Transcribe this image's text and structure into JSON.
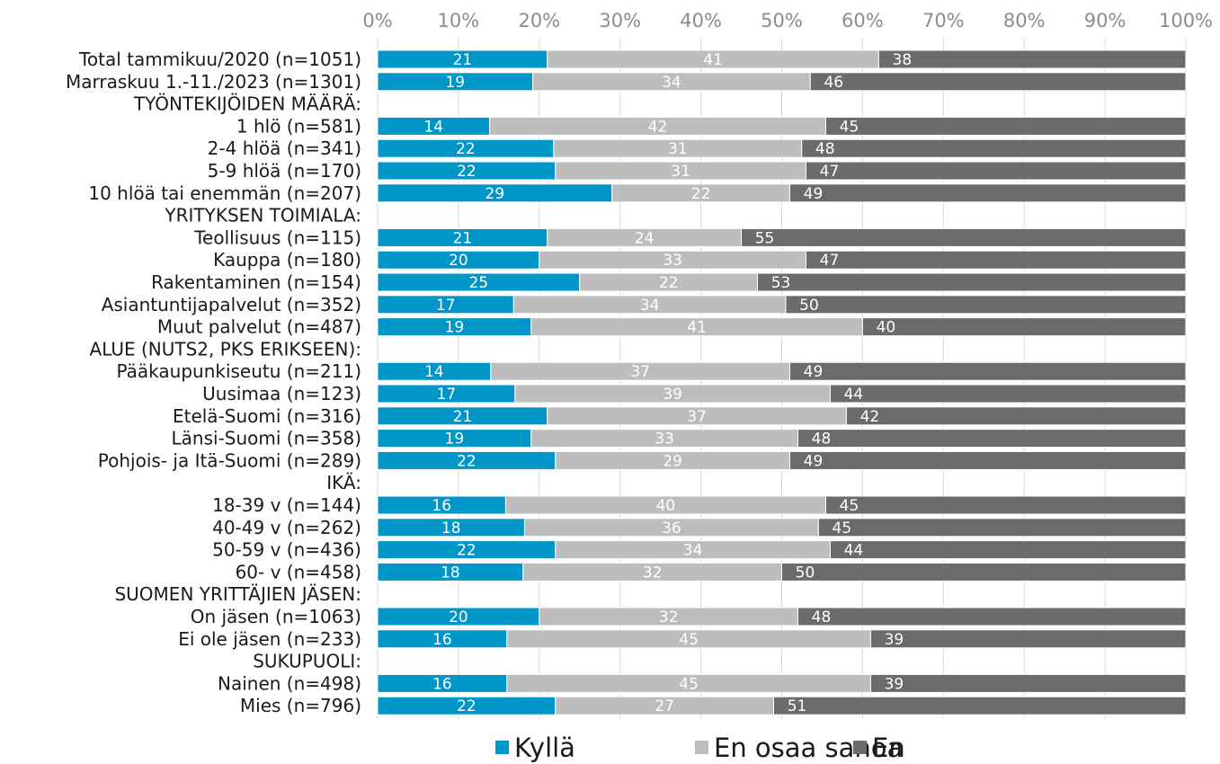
{
  "chart_data": {
    "type": "bar",
    "orientation": "horizontal",
    "stacked": true,
    "percent": true,
    "title": "",
    "xlabel": "",
    "ylabel": "",
    "xlim": [
      0,
      100
    ],
    "x_ticks": [
      "0%",
      "10%",
      "20%",
      "30%",
      "40%",
      "50%",
      "60%",
      "70%",
      "80%",
      "90%",
      "100%"
    ],
    "x_axis_position": "top",
    "grid": true,
    "legend_position": "bottom",
    "rows": [
      {
        "label": "Total tammikuu/2020 (n=1051)",
        "values": [
          21,
          41,
          38
        ]
      },
      {
        "label": "Marraskuu 1.-11./2023 (n=1301)",
        "values": [
          19,
          34,
          46
        ]
      },
      {
        "label": "TYÖNTEKIJÖIDEN MÄÄRÄ:",
        "header": true
      },
      {
        "label": "1 hlö (n=581)",
        "values": [
          14,
          42,
          45
        ]
      },
      {
        "label": "2-4 hlöä (n=341)",
        "values": [
          22,
          31,
          48
        ]
      },
      {
        "label": "5-9 hlöä (n=170)",
        "values": [
          22,
          31,
          47
        ]
      },
      {
        "label": "10 hlöä tai enemmän (n=207)",
        "values": [
          29,
          22,
          49
        ]
      },
      {
        "label": "YRITYKSEN TOIMIALA:",
        "header": true
      },
      {
        "label": "Teollisuus (n=115)",
        "values": [
          21,
          24,
          55
        ]
      },
      {
        "label": "Kauppa (n=180)",
        "values": [
          20,
          33,
          47
        ]
      },
      {
        "label": "Rakentaminen (n=154)",
        "values": [
          25,
          22,
          53
        ]
      },
      {
        "label": "Asiantuntijapalvelut (n=352)",
        "values": [
          17,
          34,
          50
        ]
      },
      {
        "label": "Muut palvelut (n=487)",
        "values": [
          19,
          41,
          40
        ]
      },
      {
        "label": "ALUE (NUTS2, PKS ERIKSEEN):",
        "header": true
      },
      {
        "label": "Pääkaupunkiseutu (n=211)",
        "values": [
          14,
          37,
          49
        ]
      },
      {
        "label": "Uusimaa (n=123)",
        "values": [
          17,
          39,
          44
        ]
      },
      {
        "label": "Etelä-Suomi (n=316)",
        "values": [
          21,
          37,
          42
        ]
      },
      {
        "label": "Länsi-Suomi (n=358)",
        "values": [
          19,
          33,
          48
        ]
      },
      {
        "label": "Pohjois- ja Itä-Suomi (n=289)",
        "values": [
          22,
          29,
          49
        ]
      },
      {
        "label": "IKÄ:",
        "header": true
      },
      {
        "label": "18-39 v (n=144)",
        "values": [
          16,
          40,
          45
        ]
      },
      {
        "label": "40-49 v (n=262)",
        "values": [
          18,
          36,
          45
        ]
      },
      {
        "label": "50-59 v (n=436)",
        "values": [
          22,
          34,
          44
        ]
      },
      {
        "label": "60- v (n=458)",
        "values": [
          18,
          32,
          50
        ]
      },
      {
        "label": "SUOMEN YRITTÄJIEN JÄSEN:",
        "header": true
      },
      {
        "label": "On jäsen (n=1063)",
        "values": [
          20,
          32,
          48
        ]
      },
      {
        "label": "Ei ole jäsen (n=233)",
        "values": [
          16,
          45,
          39
        ]
      },
      {
        "label": "SUKUPUOLI:",
        "header": true
      },
      {
        "label": "Nainen (n=498)",
        "values": [
          16,
          45,
          39
        ]
      },
      {
        "label": "Mies (n=796)",
        "values": [
          22,
          27,
          51
        ]
      }
    ],
    "series": [
      {
        "name": "Kyllä",
        "color": "#0096c8"
      },
      {
        "name": "En osaa sanoa",
        "color": "#bdbdbd"
      },
      {
        "name": "En",
        "color": "#6b6b6b"
      }
    ]
  }
}
